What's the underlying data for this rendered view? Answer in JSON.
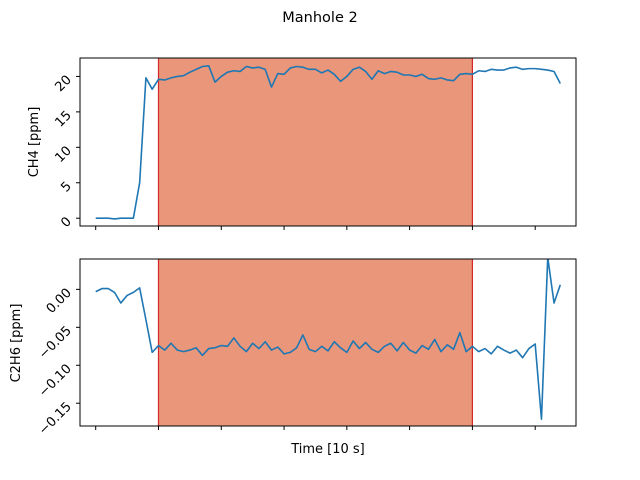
{
  "title": "Manhole 2",
  "xlabel": "Time [10 s]",
  "chart_data": [
    {
      "type": "line",
      "title": "Manhole 2",
      "ylabel": "CH4 [ppm]",
      "xlim": [
        -2.5,
        76.5
      ],
      "ylim": [
        -1.1,
        22.6
      ],
      "yticks": [
        0,
        5,
        10,
        15,
        20
      ],
      "ytick_labels": [
        "0",
        "5",
        "10",
        "15",
        "20"
      ],
      "highlight_span": [
        10,
        60
      ],
      "highlight_color": "#e9967a",
      "highlight_edge_color": "#d62728",
      "line_color": "#1f77b4",
      "series": [
        {
          "x": [
            0,
            1,
            2,
            3,
            4,
            5,
            6,
            7,
            8,
            9,
            10,
            11,
            12,
            13,
            14,
            15,
            16,
            17,
            18,
            19,
            20,
            21,
            22,
            23,
            24,
            25,
            26,
            27,
            28,
            29,
            30,
            31,
            32,
            33,
            34,
            35,
            36,
            37,
            38,
            39,
            40,
            41,
            42,
            43,
            44,
            45,
            46,
            47,
            48,
            49,
            50,
            51,
            52,
            53,
            54,
            55,
            56,
            57,
            58,
            59,
            60,
            61,
            62,
            63,
            64,
            65,
            66,
            67,
            68,
            69,
            70,
            71,
            72,
            73,
            74
          ],
          "values": [
            0,
            0,
            0,
            -0.1,
            0,
            0,
            0,
            5,
            19.8,
            18.2,
            19.6,
            19.5,
            19.8,
            20,
            20.1,
            20.6,
            21,
            21.4,
            21.5,
            19.2,
            20,
            20.6,
            20.8,
            20.7,
            21.4,
            21.2,
            21.3,
            21,
            18.5,
            20.4,
            20.3,
            21.2,
            21.4,
            21.3,
            21,
            21,
            20.5,
            20.9,
            20.3,
            19.3,
            20,
            21,
            21.3,
            20.7,
            19.6,
            20.8,
            20.4,
            20.7,
            20.6,
            20.2,
            20.2,
            20,
            20.3,
            19.7,
            19.6,
            19.8,
            19.5,
            19.4,
            20.3,
            20.4,
            20.3,
            20.8,
            20.7,
            21,
            20.9,
            20.9,
            21.2,
            21.3,
            21,
            21.1,
            21.1,
            21,
            20.9,
            20.7,
            19
          ],
          "name": ""
        }
      ]
    },
    {
      "type": "line",
      "ylabel": "C2H6 [ppm]",
      "xlim": [
        -2.5,
        76.5
      ],
      "ylim": [
        -0.18,
        0.04
      ],
      "yticks": [
        0.0,
        -0.05,
        -0.1,
        -0.15
      ],
      "ytick_labels": [
        "0.00",
        "−0.05",
        "−0.10",
        "−0.15"
      ],
      "highlight_span": [
        10,
        60
      ],
      "highlight_color": "#e9967a",
      "highlight_edge_color": "#d62728",
      "line_color": "#1f77b4",
      "series": [
        {
          "x": [
            0,
            1,
            2,
            3,
            4,
            5,
            6,
            7,
            8,
            9,
            10,
            11,
            12,
            13,
            14,
            15,
            16,
            17,
            18,
            19,
            20,
            21,
            22,
            23,
            24,
            25,
            26,
            27,
            28,
            29,
            30,
            31,
            32,
            33,
            34,
            35,
            36,
            37,
            38,
            39,
            40,
            41,
            42,
            43,
            44,
            45,
            46,
            47,
            48,
            49,
            50,
            51,
            52,
            53,
            54,
            55,
            56,
            57,
            58,
            59,
            60,
            61,
            62,
            63,
            64,
            65,
            66,
            67,
            68,
            69,
            70,
            71,
            72,
            73,
            74
          ],
          "values": [
            -0.003,
            0.001,
            0.001,
            -0.004,
            -0.018,
            -0.008,
            -0.004,
            0.002,
            -0.04,
            -0.083,
            -0.074,
            -0.08,
            -0.071,
            -0.08,
            -0.082,
            -0.08,
            -0.077,
            -0.087,
            -0.078,
            -0.077,
            -0.074,
            -0.075,
            -0.064,
            -0.075,
            -0.082,
            -0.071,
            -0.078,
            -0.069,
            -0.08,
            -0.076,
            -0.085,
            -0.083,
            -0.077,
            -0.06,
            -0.079,
            -0.082,
            -0.075,
            -0.081,
            -0.069,
            -0.077,
            -0.083,
            -0.068,
            -0.078,
            -0.07,
            -0.079,
            -0.083,
            -0.075,
            -0.071,
            -0.081,
            -0.07,
            -0.08,
            -0.084,
            -0.074,
            -0.079,
            -0.066,
            -0.082,
            -0.073,
            -0.079,
            -0.057,
            -0.082,
            -0.075,
            -0.082,
            -0.078,
            -0.085,
            -0.075,
            -0.08,
            -0.084,
            -0.08,
            -0.09,
            -0.078,
            -0.072,
            -0.171,
            0.042,
            -0.018,
            0.006
          ],
          "name": ""
        }
      ]
    }
  ]
}
